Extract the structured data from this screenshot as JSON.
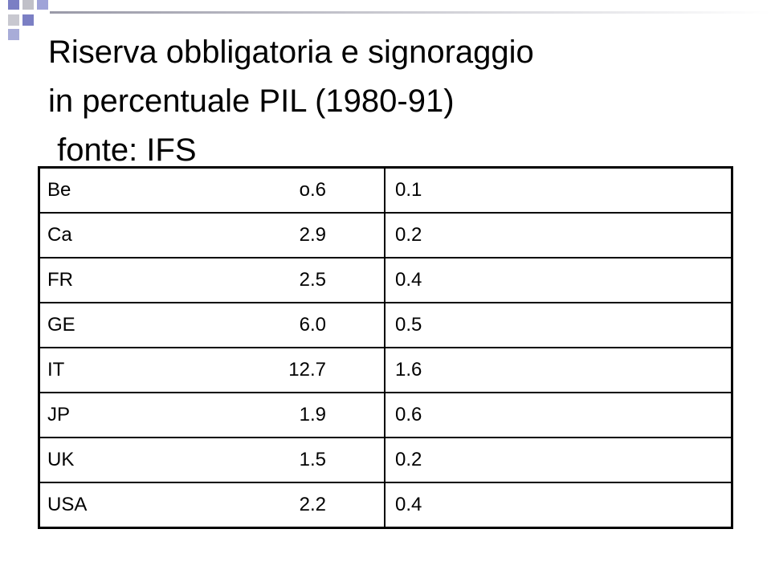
{
  "title": {
    "lines": [
      "Riserva obbligatoria e signoraggio",
      "in percentuale PIL (1980-91)",
      " fonte: IFS"
    ]
  },
  "table": {
    "rows": [
      [
        "Be",
        "o.6",
        "0.1"
      ],
      [
        "Ca",
        "2.9",
        "0.2"
      ],
      [
        "FR",
        "2.5",
        "0.4"
      ],
      [
        "GE",
        "6.0",
        "0.5"
      ],
      [
        "IT",
        "12.7",
        "1.6"
      ],
      [
        "JP",
        "1.9",
        "0.6"
      ],
      [
        "UK",
        "1.5",
        "0.2"
      ],
      [
        "USA",
        "2.2",
        "0.4"
      ]
    ]
  }
}
